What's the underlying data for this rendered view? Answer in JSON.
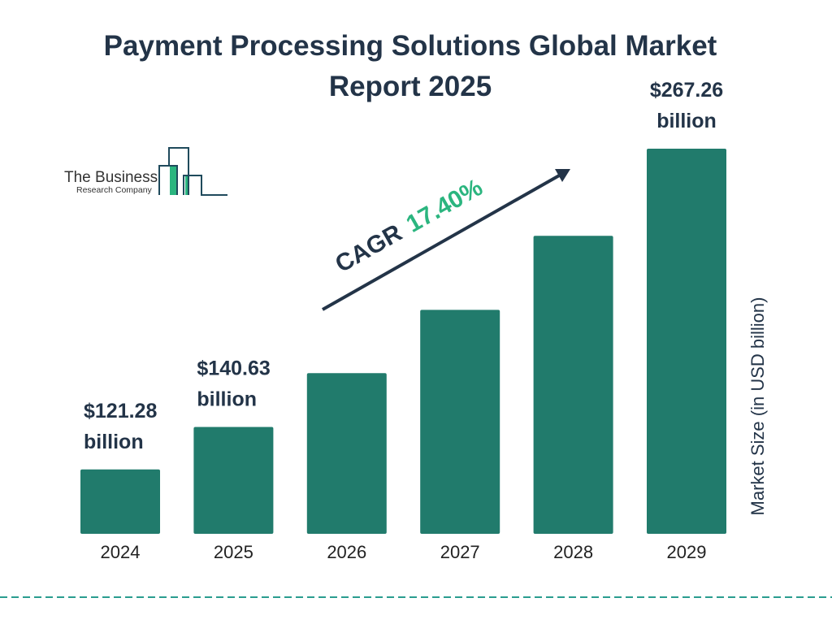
{
  "chart_data": {
    "type": "bar",
    "title": "Payment Processing Solutions Global Market Report 2025",
    "title_lines": [
      "Payment Processing Solutions Global Market",
      "Report 2025"
    ],
    "categories": [
      "2024",
      "2025",
      "2026",
      "2027",
      "2028",
      "2029"
    ],
    "values": [
      121.28,
      140.63,
      165.1,
      193.9,
      227.6,
      267.26
    ],
    "data_labels": [
      {
        "index": 0,
        "value": "$121.28",
        "unit": "billion"
      },
      {
        "index": 1,
        "value": "$140.63",
        "unit": "billion"
      },
      {
        "index": 5,
        "value": "$267.26",
        "unit": "billion"
      }
    ],
    "xlabel": "",
    "ylabel": "Market Size (in USD billion)",
    "ylim": [
      92,
      267.26
    ],
    "grid": false,
    "annotation": {
      "label": "CAGR",
      "value": "17.40%"
    },
    "colors": {
      "bar": "#217b6c",
      "title": "#233448",
      "cagr_value": "#2bb57f",
      "dash": "#2a9d8f"
    }
  },
  "logo": {
    "line1": "The Business",
    "line2": "Research Company"
  }
}
